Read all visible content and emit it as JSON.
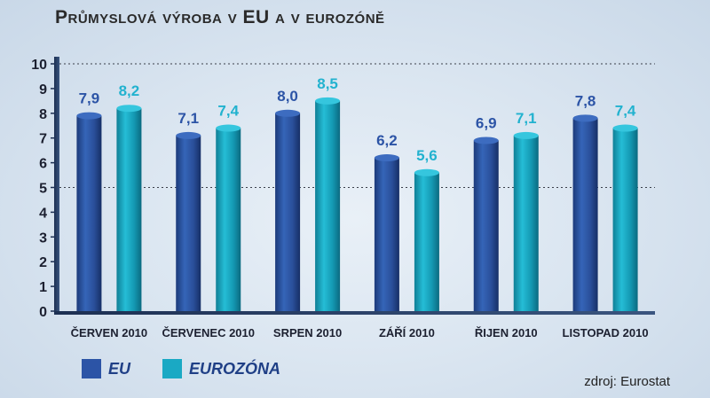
{
  "chart_data": {
    "type": "bar",
    "title": "Průmyslová výroba v EU a v eurozóně",
    "categories": [
      "ČERVEN 2010",
      "ČERVENEC 2010",
      "SRPEN 2010",
      "ZÁŘÍ 2010",
      "ŘIJEN 2010",
      "LISTOPAD 2010"
    ],
    "series": [
      {
        "name": "EU",
        "color": "#2c54a6",
        "values": [
          7.9,
          7.1,
          8.0,
          6.2,
          6.9,
          7.8
        ],
        "labels": [
          "7,9",
          "7,1",
          "8,0",
          "6,2",
          "6,9",
          "7,8"
        ]
      },
      {
        "name": "EUROZÓNA",
        "color": "#1aa9c4",
        "values": [
          8.2,
          7.4,
          8.5,
          5.6,
          7.1,
          7.4
        ],
        "labels": [
          "8,2",
          "7,4",
          "8,5",
          "5,6",
          "7,1",
          "7,4"
        ]
      }
    ],
    "label_colors": [
      "#2c54a6",
      "#22b2cf"
    ],
    "yticks": [
      0,
      1,
      2,
      3,
      4,
      5,
      6,
      7,
      8,
      9,
      10
    ],
    "ylim": [
      0,
      10
    ],
    "gridlines": [
      5,
      10
    ],
    "legend_position": "bottom-left"
  },
  "source": "zdroj: Eurostat"
}
